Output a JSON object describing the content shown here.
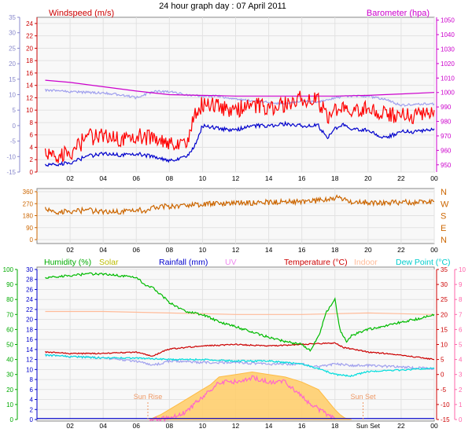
{
  "title": "24 hour graph day : 07 April 2011",
  "chart_data": [
    {
      "type": "line",
      "panel": "wind-baro",
      "x_ticks": [
        "02",
        "04",
        "06",
        "08",
        "10",
        "12",
        "14",
        "16",
        "18",
        "20",
        "22",
        "00"
      ],
      "left_axis": {
        "label": "Windspeed (m/s)",
        "range": [
          0,
          25
        ],
        "ticks": [
          0,
          2,
          4,
          6,
          8,
          10,
          12,
          14,
          16,
          18,
          20,
          22,
          24
        ],
        "color": "#cc0000"
      },
      "outer_left_axis": {
        "range": [
          -15,
          35
        ],
        "ticks": [
          -15,
          -10,
          -5,
          0,
          5,
          10,
          15,
          20,
          25,
          30,
          35
        ],
        "color": "#8888cc"
      },
      "right_axis": {
        "label": "Barometer (hpa)",
        "range": [
          945,
          1052
        ],
        "ticks": [
          950,
          960,
          970,
          980,
          990,
          1000,
          1010,
          1020,
          1030,
          1040,
          1050
        ],
        "color": "#cc00cc"
      },
      "series": [
        {
          "name": "Windspeed (m/s)",
          "color": "#ff0000",
          "axis": "left",
          "x": [
            0.5,
            1,
            2,
            3,
            4,
            5,
            6,
            7,
            8,
            8.5,
            9,
            9.5,
            10,
            11,
            12,
            13,
            14,
            15,
            16,
            17,
            17.5,
            18,
            18.5,
            19,
            20,
            21,
            22,
            23,
            24
          ],
          "values": [
            2.5,
            2.5,
            3.2,
            5.5,
            6,
            5.5,
            6,
            5.5,
            4.5,
            5,
            4.5,
            9,
            11,
            10.5,
            10,
            11,
            10.5,
            11,
            12,
            11.5,
            9,
            10,
            11,
            10,
            10.5,
            9.5,
            9,
            9,
            10
          ]
        },
        {
          "color": "#0000cc",
          "axis": "left",
          "x": [
            0.5,
            1,
            2,
            3,
            4,
            5,
            6,
            7,
            8,
            8.5,
            9,
            9.5,
            10,
            11,
            12,
            13,
            14,
            15,
            16,
            17,
            17.5,
            18,
            18.5,
            19,
            20,
            21,
            22,
            23,
            24
          ],
          "values": [
            1,
            1.2,
            1.5,
            2.5,
            3,
            2.8,
            3,
            2.5,
            1.8,
            2.2,
            2.5,
            4,
            7.5,
            7,
            6.8,
            7.5,
            7.5,
            7.8,
            7.5,
            7.5,
            5.5,
            7,
            7.8,
            7,
            6.8,
            5.5,
            6.5,
            6.5,
            7
          ]
        },
        {
          "name": "Barometer (hpa)",
          "color": "#cc00cc",
          "axis": "right",
          "x": [
            0.5,
            2,
            4,
            6,
            8,
            10,
            12,
            14,
            16,
            18,
            20,
            22,
            24
          ],
          "values": [
            1008.5,
            1007,
            1004,
            1001,
            998.5,
            998,
            997.5,
            997.5,
            997.5,
            997.5,
            998,
            999,
            1000
          ]
        },
        {
          "color": "#a0a0ee",
          "axis": "outer_left",
          "x": [
            0.5,
            2,
            4,
            5,
            6,
            7,
            8,
            9,
            10,
            11,
            12,
            13,
            14,
            15,
            16,
            17,
            18,
            19,
            20,
            21,
            22,
            23,
            24
          ],
          "values": [
            11.5,
            11,
            10.5,
            10,
            9,
            11,
            11,
            10,
            9.5,
            9.5,
            8.5,
            8,
            7.5,
            7,
            8,
            7.5,
            9,
            9.5,
            9.5,
            8.5,
            6.5,
            7,
            7
          ]
        }
      ]
    },
    {
      "type": "line",
      "panel": "wind-direction",
      "x_ticks": [
        "02",
        "04",
        "06",
        "08",
        "10",
        "12",
        "14",
        "16",
        "18",
        "20",
        "22",
        "00"
      ],
      "left_axis": {
        "range": [
          0,
          360
        ],
        "ticks": [
          0,
          90,
          180,
          270,
          360
        ],
        "color": "#cc6600"
      },
      "right_axis_labels": [
        "N",
        "W",
        "S",
        "E",
        "N"
      ],
      "series": [
        {
          "color": "#cc6600",
          "x": [
            0.5,
            1,
            2,
            3,
            4,
            5,
            6,
            6.5,
            7,
            8,
            9,
            10,
            11,
            12,
            14,
            16,
            17,
            18,
            18.5,
            19,
            20,
            21,
            22,
            23,
            24
          ],
          "values": [
            225,
            205,
            215,
            220,
            210,
            212,
            230,
            215,
            245,
            250,
            260,
            265,
            270,
            275,
            280,
            285,
            292,
            315,
            300,
            285,
            280,
            278,
            282,
            280,
            285
          ]
        }
      ]
    },
    {
      "type": "line",
      "panel": "weather",
      "x_ticks": [
        "02",
        "04",
        "06",
        "08",
        "10",
        "12",
        "14",
        "16",
        "18",
        "Sun Set",
        "22",
        "00"
      ],
      "legend": [
        "Humidity (%)",
        "Solar",
        "Rainfall (mm)",
        "UV",
        "Temperature (°C)",
        "Indoor",
        "Dew Point (°C)"
      ],
      "legend_colors": [
        "#00aa00",
        "#bbbb00",
        "#0000cc",
        "#ee88ee",
        "#cc0000",
        "#ffbb99",
        "#00cccc"
      ],
      "humidity_axis": {
        "range": [
          0,
          100
        ],
        "ticks": [
          0,
          10,
          20,
          30,
          40,
          50,
          60,
          70,
          80,
          90,
          100
        ],
        "color": "#00aa00"
      },
      "rain_axis": {
        "range": [
          0,
          30
        ],
        "ticks": [
          0,
          2,
          4,
          6,
          8,
          10,
          12,
          14,
          16,
          18,
          20,
          22,
          24,
          26,
          28,
          30
        ],
        "color": "#0000cc"
      },
      "temp_axis": {
        "range": [
          -15,
          35
        ],
        "ticks": [
          -15,
          -10,
          -5,
          0,
          5,
          10,
          15,
          20,
          25,
          30,
          35
        ],
        "color": "#cc0000"
      },
      "uv_axis": {
        "range": [
          0,
          10
        ],
        "ticks": [
          0,
          1,
          2,
          3,
          4,
          5,
          6,
          7,
          8,
          9,
          10
        ],
        "color": "#ff66aa"
      },
      "annotations": [
        {
          "text": "Sun Rise",
          "x": 6.7
        },
        {
          "text": "Sun Set",
          "x": 19.7
        }
      ],
      "series": [
        {
          "name": "Humidity (%)",
          "color": "#00bb00",
          "axis": "humidity",
          "x": [
            0.5,
            1,
            2,
            3,
            4,
            5,
            6,
            6.5,
            7,
            8,
            9,
            10,
            11,
            12,
            13,
            14,
            15,
            16,
            16.5,
            17,
            17.5,
            18,
            18.3,
            18.7,
            19,
            20,
            21,
            22,
            23,
            24
          ],
          "values": [
            94,
            95,
            96,
            97,
            97,
            96,
            95,
            90,
            88,
            78,
            72,
            70,
            65,
            62,
            58,
            55,
            52,
            50,
            46,
            55,
            72,
            80,
            60,
            52,
            56,
            60,
            62,
            65,
            67,
            70
          ]
        },
        {
          "name": "Temperature (°C)",
          "color": "#cc0000",
          "axis": "temp",
          "x": [
            0.5,
            2,
            4,
            6,
            7,
            7.5,
            8,
            10,
            12,
            14,
            16,
            18,
            18.5,
            19,
            20,
            22,
            24
          ],
          "values": [
            7.5,
            7,
            7,
            7.5,
            6,
            7.5,
            8.5,
            9.5,
            10,
            9.5,
            10,
            10.5,
            9,
            8.5,
            7.5,
            6.5,
            5
          ]
        },
        {
          "name": "Indoor",
          "color": "#ffbb99",
          "axis": "temp",
          "x": [
            0.5,
            4,
            8,
            12,
            16,
            20,
            24
          ],
          "values": [
            21,
            21,
            20.5,
            20,
            20,
            20.5,
            20
          ]
        },
        {
          "name": "Dew Point (°C)",
          "color": "#00dddd",
          "axis": "temp",
          "x": [
            0.5,
            2,
            4,
            6,
            8,
            10,
            12,
            14,
            16,
            17,
            18,
            19,
            20,
            22,
            24
          ],
          "values": [
            6.5,
            6,
            5.5,
            5.5,
            5,
            5,
            4.5,
            4.5,
            3.5,
            2,
            0,
            -0.5,
            1,
            1.5,
            2
          ]
        },
        {
          "color": "#a0a0ee",
          "axis": "temp",
          "x": [
            0.5,
            2,
            4,
            6,
            7,
            8,
            10,
            12,
            14,
            16,
            17,
            18,
            19,
            20,
            22,
            24
          ],
          "values": [
            6.5,
            6,
            5.5,
            4.5,
            3,
            4.5,
            4,
            4,
            3.5,
            3.5,
            2.5,
            3.5,
            3,
            3,
            2.5,
            2
          ]
        },
        {
          "name": "Solar",
          "color": "#ffcc66",
          "axis": "rain",
          "fill": true,
          "x": [
            6.8,
            7.5,
            8.5,
            9.5,
            10.5,
            11,
            12,
            13,
            14,
            15,
            16,
            17,
            17.5,
            18,
            18.3,
            18.6,
            19
          ],
          "values": [
            0,
            1,
            3,
            5,
            7,
            8.5,
            9,
            9.5,
            9,
            8.5,
            7.5,
            6,
            4,
            2,
            1,
            0.3,
            0
          ]
        },
        {
          "name": "UV",
          "color": "#ff66cc",
          "axis": "uv",
          "x": [
            6.8,
            8,
            9,
            10,
            11,
            12,
            13,
            14,
            15,
            16,
            17,
            18
          ],
          "values": [
            0,
            0.1,
            0.5,
            1.5,
            2.5,
            2.5,
            2.8,
            2.5,
            2.5,
            1.5,
            0.7,
            0
          ]
        },
        {
          "name": "Rainfall (mm)",
          "color": "#0000cc",
          "axis": "rain",
          "x": [
            0,
            24
          ],
          "values": [
            0.2,
            0.2
          ]
        }
      ]
    }
  ]
}
